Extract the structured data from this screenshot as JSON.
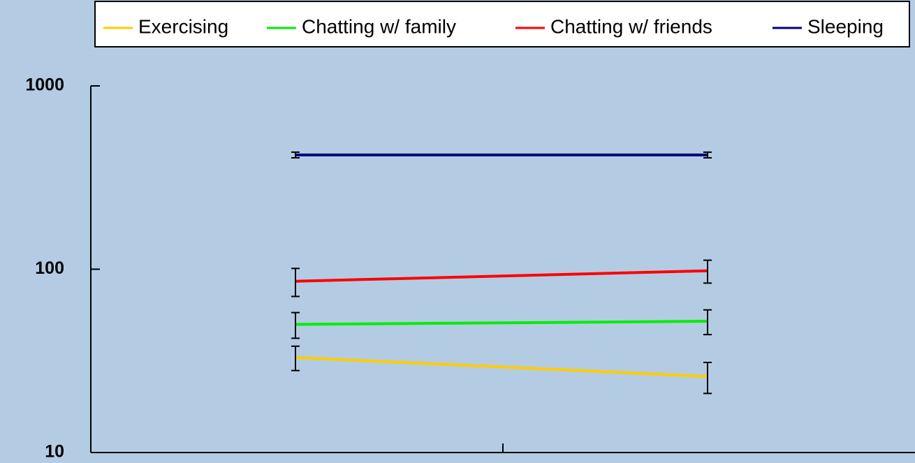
{
  "chart_data": {
    "type": "line",
    "categories": [
      null,
      null
    ],
    "series": [
      {
        "name": "Exercising",
        "color": "#ffcc00",
        "values": [
          33,
          26
        ],
        "errors": [
          5,
          5
        ]
      },
      {
        "name": "Chatting w/ family",
        "color": "#00ee00",
        "values": [
          50,
          52
        ],
        "errors": [
          8,
          8
        ]
      },
      {
        "name": "Chatting w/ friends",
        "color": "#ff0000",
        "values": [
          86,
          98
        ],
        "errors": [
          15,
          14
        ]
      },
      {
        "name": "Sleeping",
        "color": "#000080",
        "values": [
          420,
          420
        ],
        "errors": [
          15,
          15
        ]
      }
    ],
    "ylim": [
      10,
      1000
    ],
    "yticks": [
      10,
      100,
      1000
    ],
    "log_y": true,
    "grid": false,
    "legend": "top"
  }
}
